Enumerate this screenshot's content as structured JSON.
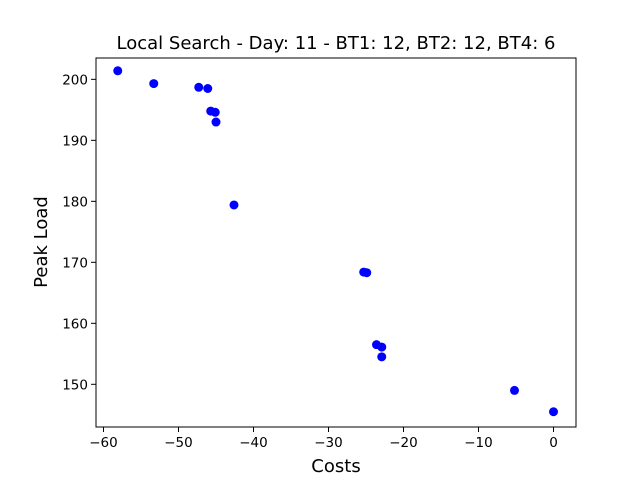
{
  "chart_data": {
    "type": "scatter",
    "title": "Local Search - Day: 11 - BT1: 12, BT2: 12, BT4: 6",
    "xlabel": "Costs",
    "ylabel": "Peak Load",
    "xlim": [
      -61.0,
      3.0
    ],
    "ylim": [
      143.0,
      203.5
    ],
    "xticks": [
      -60,
      -50,
      -40,
      -30,
      -20,
      -10,
      0
    ],
    "xtick_labels": [
      "−60",
      "−50",
      "−40",
      "−30",
      "−20",
      "−10",
      "0"
    ],
    "yticks": [
      150,
      160,
      170,
      180,
      190,
      200
    ],
    "ytick_labels": [
      "150",
      "160",
      "170",
      "180",
      "190",
      "200"
    ],
    "grid": false,
    "legend": "none",
    "marker_color": "#0000ff",
    "points": [
      {
        "x": -58.1,
        "y": 201.4
      },
      {
        "x": -53.3,
        "y": 199.3
      },
      {
        "x": -47.3,
        "y": 198.7
      },
      {
        "x": -46.1,
        "y": 198.5
      },
      {
        "x": -45.7,
        "y": 194.8
      },
      {
        "x": -45.1,
        "y": 194.6
      },
      {
        "x": -45.0,
        "y": 193.0
      },
      {
        "x": -42.6,
        "y": 179.4
      },
      {
        "x": -25.3,
        "y": 168.4
      },
      {
        "x": -24.9,
        "y": 168.3
      },
      {
        "x": -23.6,
        "y": 156.5
      },
      {
        "x": -22.9,
        "y": 156.1
      },
      {
        "x": -22.9,
        "y": 154.5
      },
      {
        "x": -5.2,
        "y": 149.0
      },
      {
        "x": 0.0,
        "y": 145.5
      }
    ]
  }
}
